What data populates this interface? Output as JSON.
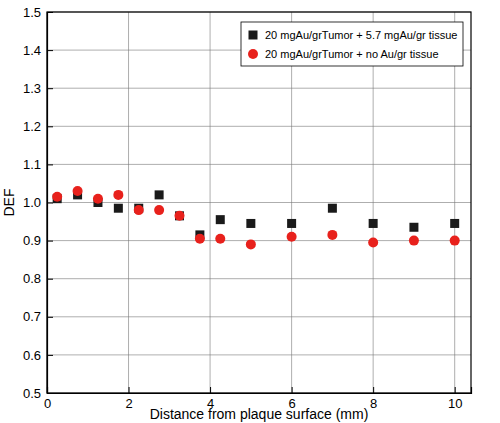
{
  "chart_data": {
    "type": "scatter",
    "x_label": "Distance from plaque surface (mm)",
    "y_label": "DEF",
    "x": [
      0.25,
      0.75,
      1.25,
      1.75,
      2.25,
      2.75,
      3.25,
      3.75,
      4.25,
      5,
      6,
      7,
      8,
      9,
      10
    ],
    "series": [
      {
        "name": "20 mgAu/grTumor + 5.7 mgAu/gr tissue",
        "color": "#1a1a1a",
        "marker": "square",
        "values": [
          1.01,
          1.02,
          1.0,
          0.985,
          0.985,
          1.02,
          0.965,
          0.915,
          0.955,
          0.945,
          0.945,
          0.985,
          0.945,
          0.935,
          0.945
        ]
      },
      {
        "name": "20 mgAu/grTumor + no Au/gr tissue",
        "color": "#e8211c",
        "marker": "circle",
        "values": [
          1.015,
          1.03,
          1.01,
          1.02,
          0.98,
          0.98,
          0.965,
          0.905,
          0.905,
          0.89,
          0.91,
          0.915,
          0.895,
          0.9,
          0.9
        ]
      }
    ],
    "xlim": [
      0,
      10.4
    ],
    "xticks": [
      0,
      2,
      4,
      6,
      8,
      10
    ],
    "ylim": [
      0.5,
      1.5
    ],
    "yticks": [
      0.5,
      0.6,
      0.7,
      0.8,
      0.9,
      {
        "value": 1,
        "label": "1.0"
      },
      1.1,
      1.2,
      1.3,
      1.4,
      1.5
    ],
    "grid": true,
    "legend": "upper right"
  }
}
